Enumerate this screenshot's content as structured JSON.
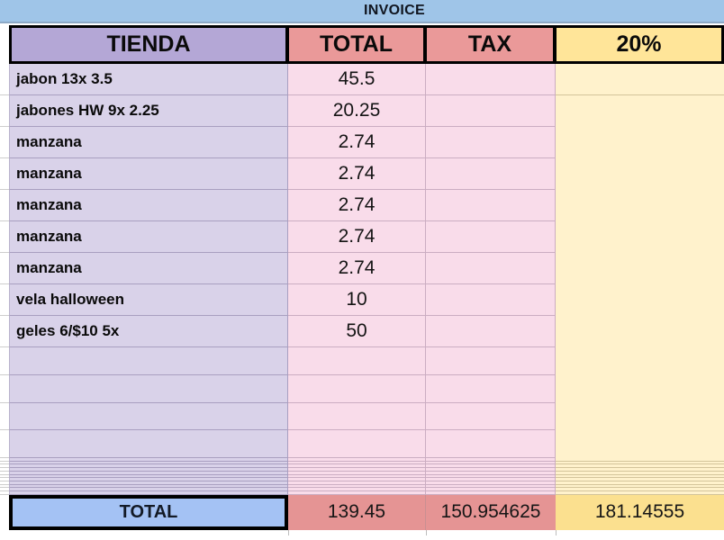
{
  "title": "INVOICE",
  "header": {
    "columns": [
      "TIENDA",
      "TOTAL",
      "TAX",
      "20%"
    ]
  },
  "rows": [
    {
      "label": "jabon 13x 3.5",
      "total": "45.5"
    },
    {
      "label": "jabones HW 9x 2.25",
      "total": "20.25"
    },
    {
      "label": "manzana",
      "total": "2.74"
    },
    {
      "label": "manzana",
      "total": "2.74"
    },
    {
      "label": "manzana",
      "total": "2.74"
    },
    {
      "label": "manzana",
      "total": "2.74"
    },
    {
      "label": "manzana",
      "total": "2.74"
    },
    {
      "label": "vela halloween",
      "total": "10"
    },
    {
      "label": "geles 6/$10 5x",
      "total": "50"
    },
    {
      "label": "",
      "total": ""
    },
    {
      "label": "",
      "total": ""
    },
    {
      "label": "",
      "total": ""
    },
    {
      "label": "",
      "total": ""
    }
  ],
  "collapsed_rows": {
    "count": 11
  },
  "footer": {
    "label": "TOTAL",
    "total": "139.45",
    "tax": "150.954625",
    "pct20": "181.14555"
  },
  "colors": {
    "title_bar": "#9fc5e8",
    "header_store": "#b4a7d6",
    "header_amount": "#ea9999",
    "header_pct": "#ffe599",
    "body_store": "#d9d2e9",
    "body_amount": "#f9dcea",
    "body_pct": "#fff2cc",
    "footer_label_bg": "#a4c2f4",
    "footer_amount_bg": "#e59494",
    "footer_pct_bg": "#fbe08f",
    "border_black": "#000000"
  }
}
